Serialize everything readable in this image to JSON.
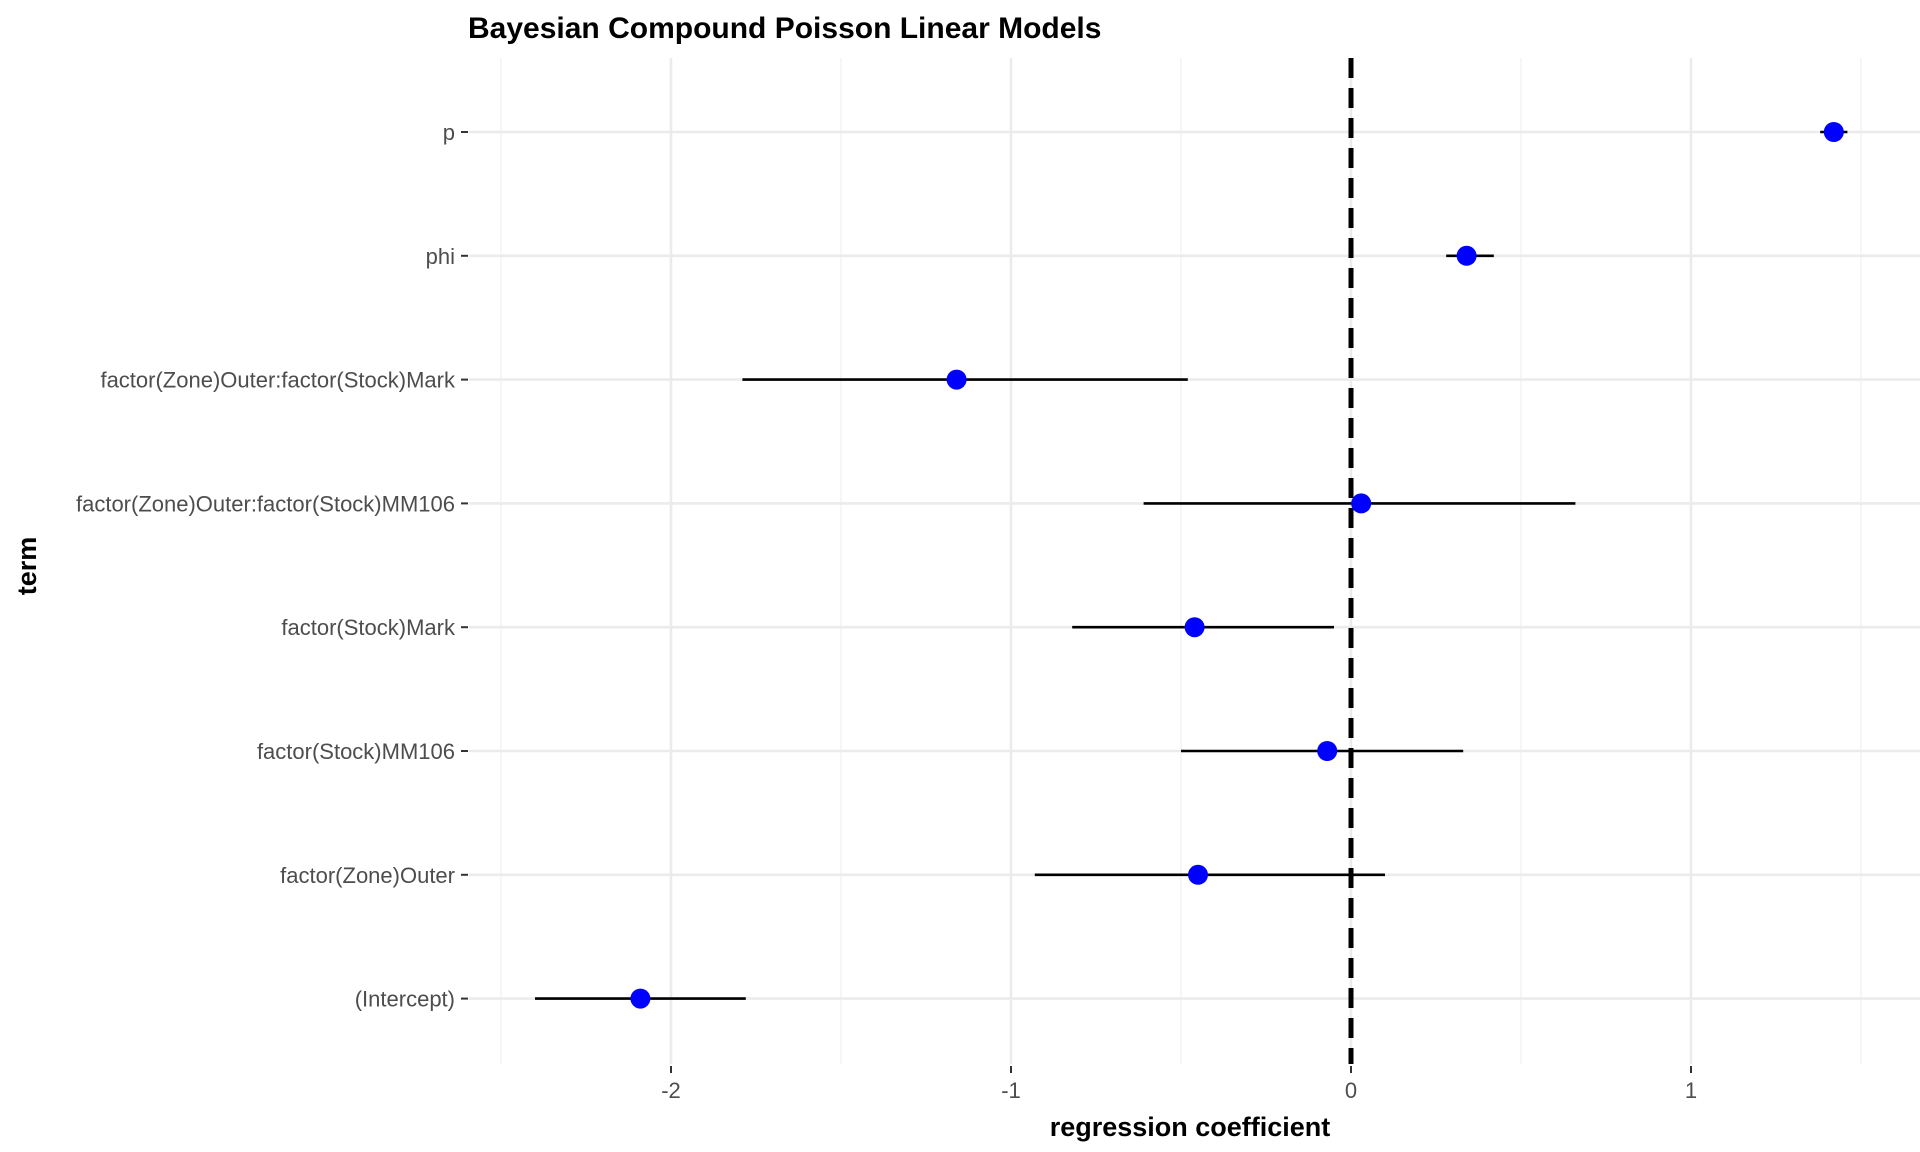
{
  "chart_data": {
    "type": "scatter",
    "title": "Bayesian Compound Poisson Linear Models",
    "xlabel": "regression coefficient",
    "ylabel": "term",
    "xlim": [
      -2.5,
      1.6
    ],
    "x_ticks": [
      -2,
      -1,
      0,
      1
    ],
    "x_tick_labels": [
      "-2",
      "-1",
      "0",
      "1"
    ],
    "x_minor_ticks": [
      -2.5,
      -1.5,
      -0.5,
      0.5,
      1.5
    ],
    "reference_line": {
      "x": 0,
      "style": "dashed",
      "color": "#000000"
    },
    "grid": true,
    "point_color": "#0000ff",
    "terms": [
      {
        "term": "p",
        "estimate": 1.42,
        "low": 1.38,
        "high": 1.46
      },
      {
        "term": "phi",
        "estimate": 0.34,
        "low": 0.28,
        "high": 0.42
      },
      {
        "term": "factor(Zone)Outer:factor(Stock)Mark",
        "estimate": -1.16,
        "low": -1.79,
        "high": -0.48
      },
      {
        "term": "factor(Zone)Outer:factor(Stock)MM106",
        "estimate": 0.03,
        "low": -0.61,
        "high": 0.66
      },
      {
        "term": "factor(Stock)Mark",
        "estimate": -0.46,
        "low": -0.82,
        "high": -0.05
      },
      {
        "term": "factor(Stock)MM106",
        "estimate": -0.07,
        "low": -0.5,
        "high": 0.33
      },
      {
        "term": "factor(Zone)Outer",
        "estimate": -0.45,
        "low": -0.93,
        "high": 0.1
      },
      {
        "term": "(Intercept)",
        "estimate": -2.09,
        "low": -2.4,
        "high": -1.78
      }
    ]
  }
}
